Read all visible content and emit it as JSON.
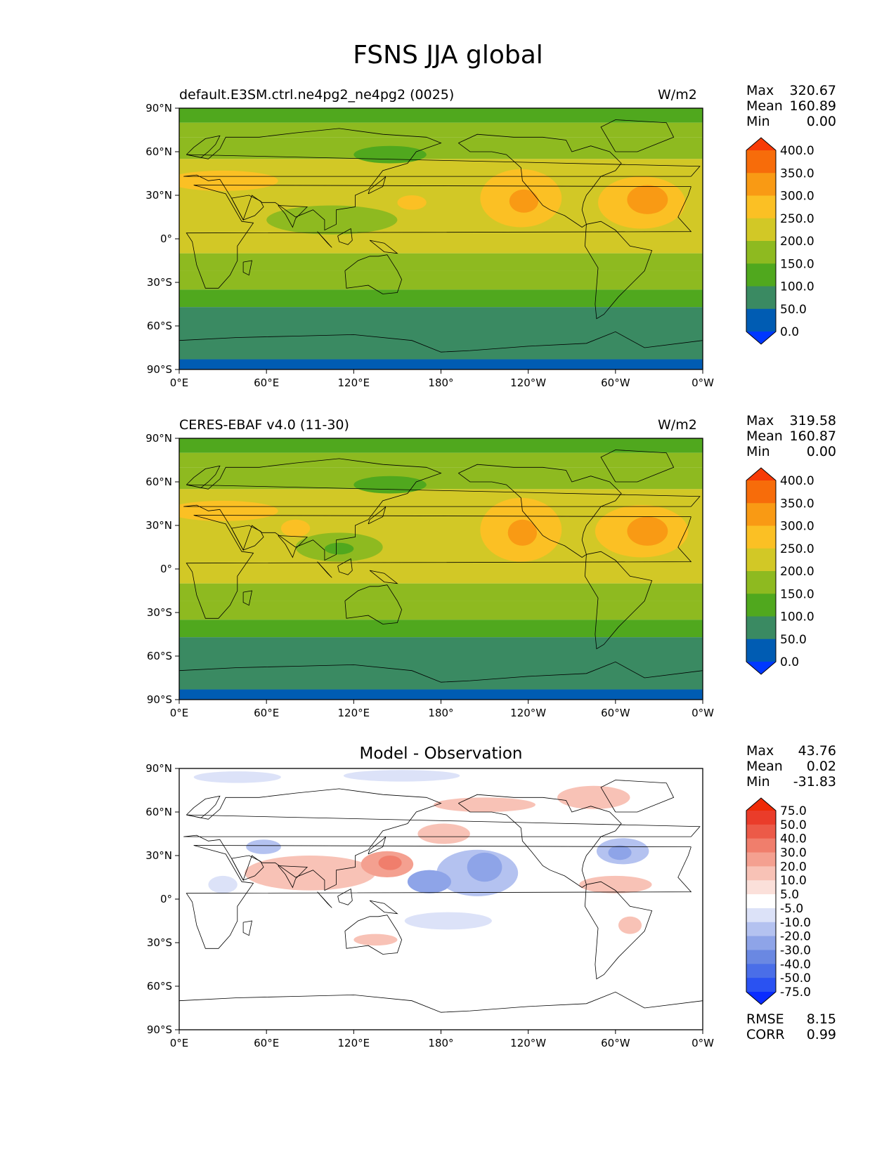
{
  "title": "FSNS JJA global",
  "chart_data": [
    {
      "type": "heatmap",
      "title_left": "default.E3SM.ctrl.ne4pg2_ne4pg2 (0025)",
      "title_right": "W/m2",
      "stats": {
        "max_label": "Max",
        "max": "320.67",
        "mean_label": "Mean",
        "mean": "160.89",
        "min_label": "Min",
        "min": "0.00"
      },
      "colorbar": {
        "levels": [
          "0.0",
          "50.0",
          "100.0",
          "150.0",
          "200.0",
          "250.0",
          "300.0",
          "350.0",
          "400.0"
        ],
        "colors": [
          "#0038ff",
          "#005cb3",
          "#3a8a62",
          "#50a81e",
          "#8eba20",
          "#d2c826",
          "#fbc024",
          "#f99a14",
          "#f76c0a",
          "#f73a06"
        ]
      },
      "x_ticks": [
        "0°E",
        "60°E",
        "120°E",
        "180°",
        "120°W",
        "60°W",
        "0°W"
      ],
      "y_ticks": [
        "90°N",
        "60°N",
        "30°N",
        "0°",
        "30°S",
        "60°S",
        "90°S"
      ],
      "xlim": [
        0,
        360
      ],
      "ylim": [
        -90,
        90
      ],
      "latitude_bands": [
        {
          "lat_from": 90,
          "lat_to": 80,
          "value": 110
        },
        {
          "lat_from": 80,
          "lat_to": 70,
          "value": 160
        },
        {
          "lat_from": 70,
          "lat_to": 55,
          "value": 180
        },
        {
          "lat_from": 55,
          "lat_to": 15,
          "value": 225
        },
        {
          "lat_from": 15,
          "lat_to": -10,
          "value": 215
        },
        {
          "lat_from": -10,
          "lat_to": -22,
          "value": 180
        },
        {
          "lat_from": -22,
          "lat_to": -35,
          "value": 150
        },
        {
          "lat_from": -35,
          "lat_to": -47,
          "value": 110
        },
        {
          "lat_from": -47,
          "lat_to": -83,
          "value": 60
        },
        {
          "lat_from": -83,
          "lat_to": -90,
          "value": 0
        }
      ],
      "anomalies": [
        {
          "lon": 235,
          "lat": 28,
          "rx": 28,
          "ry": 20,
          "value": 270
        },
        {
          "lon": 237,
          "lat": 26,
          "rx": 10,
          "ry": 8,
          "value": 320
        },
        {
          "lon": 318,
          "lat": 25,
          "rx": 30,
          "ry": 18,
          "value": 265
        },
        {
          "lon": 322,
          "lat": 27,
          "rx": 14,
          "ry": 10,
          "value": 310
        },
        {
          "lon": 30,
          "lat": 40,
          "rx": 38,
          "ry": 7,
          "value": 260
        },
        {
          "lon": 105,
          "lat": 13,
          "rx": 45,
          "ry": 10,
          "value": 170
        },
        {
          "lon": 145,
          "lat": 58,
          "rx": 25,
          "ry": 6,
          "value": 120
        },
        {
          "lon": 160,
          "lat": 25,
          "rx": 10,
          "ry": 5,
          "value": 260
        }
      ]
    },
    {
      "type": "heatmap",
      "title_left": "CERES-EBAF v4.0 (11-30)",
      "title_right": "W/m2",
      "stats": {
        "max_label": "Max",
        "max": "319.58",
        "mean_label": "Mean",
        "mean": "160.87",
        "min_label": "Min",
        "min": "0.00"
      },
      "colorbar": {
        "levels": [
          "0.0",
          "50.0",
          "100.0",
          "150.0",
          "200.0",
          "250.0",
          "300.0",
          "350.0",
          "400.0"
        ],
        "colors": [
          "#0038ff",
          "#005cb3",
          "#3a8a62",
          "#50a81e",
          "#8eba20",
          "#d2c826",
          "#fbc024",
          "#f99a14",
          "#f76c0a",
          "#f73a06"
        ]
      },
      "x_ticks": [
        "0°E",
        "60°E",
        "120°E",
        "180°",
        "120°W",
        "60°W",
        "0°W"
      ],
      "y_ticks": [
        "90°N",
        "60°N",
        "30°N",
        "0°",
        "30°S",
        "60°S",
        "90°S"
      ],
      "xlim": [
        0,
        360
      ],
      "ylim": [
        -90,
        90
      ],
      "latitude_bands": [
        {
          "lat_from": 90,
          "lat_to": 80,
          "value": 110
        },
        {
          "lat_from": 80,
          "lat_to": 70,
          "value": 160
        },
        {
          "lat_from": 70,
          "lat_to": 55,
          "value": 180
        },
        {
          "lat_from": 55,
          "lat_to": 15,
          "value": 225
        },
        {
          "lat_from": 15,
          "lat_to": -10,
          "value": 220
        },
        {
          "lat_from": -10,
          "lat_to": -22,
          "value": 180
        },
        {
          "lat_from": -22,
          "lat_to": -35,
          "value": 150
        },
        {
          "lat_from": -35,
          "lat_to": -47,
          "value": 110
        },
        {
          "lat_from": -47,
          "lat_to": -83,
          "value": 60
        },
        {
          "lat_from": -83,
          "lat_to": -90,
          "value": 0
        }
      ],
      "anomalies": [
        {
          "lon": 235,
          "lat": 27,
          "rx": 28,
          "ry": 22,
          "value": 270
        },
        {
          "lon": 236,
          "lat": 25,
          "rx": 10,
          "ry": 9,
          "value": 320
        },
        {
          "lon": 318,
          "lat": 26,
          "rx": 32,
          "ry": 18,
          "value": 265
        },
        {
          "lon": 322,
          "lat": 26,
          "rx": 14,
          "ry": 10,
          "value": 310
        },
        {
          "lon": 30,
          "lat": 40,
          "rx": 38,
          "ry": 7,
          "value": 260
        },
        {
          "lon": 110,
          "lat": 15,
          "rx": 30,
          "ry": 10,
          "value": 170
        },
        {
          "lon": 110,
          "lat": 14,
          "rx": 10,
          "ry": 4,
          "value": 120
        },
        {
          "lon": 145,
          "lat": 58,
          "rx": 25,
          "ry": 6,
          "value": 120
        },
        {
          "lon": 80,
          "lat": 28,
          "rx": 10,
          "ry": 6,
          "value": 265
        }
      ]
    },
    {
      "type": "heatmap",
      "title": "Model - Observation",
      "stats": {
        "max_label": "Max",
        "max": "43.76",
        "mean_label": "Mean",
        "mean": "0.02",
        "min_label": "Min",
        "min": "-31.83"
      },
      "metrics": {
        "rmse_label": "RMSE",
        "rmse": "8.15",
        "corr_label": "CORR",
        "corr": "0.99"
      },
      "colorbar": {
        "levels": [
          "-75.0",
          "-50.0",
          "-40.0",
          "-30.0",
          "-20.0",
          "-10.0",
          "-5.0",
          "5.0",
          "10.0",
          "20.0",
          "30.0",
          "40.0",
          "50.0",
          "75.0"
        ],
        "colors": [
          "#0a2cff",
          "#2a52f2",
          "#4a6ee8",
          "#6a88e2",
          "#8ea4e8",
          "#b4c2f0",
          "#dce2f8",
          "#ffffff",
          "#fbe0da",
          "#f8c2b6",
          "#f4a090",
          "#f07e6c",
          "#ec5a48",
          "#ea3c2a",
          "#ee2a06"
        ]
      },
      "x_ticks": [
        "0°E",
        "60°E",
        "120°E",
        "180°",
        "120°W",
        "60°W",
        "0°W"
      ],
      "y_ticks": [
        "90°N",
        "60°N",
        "30°N",
        "0°",
        "30°S",
        "60°S",
        "90°S"
      ],
      "xlim": [
        0,
        360
      ],
      "ylim": [
        -90,
        90
      ],
      "anomalies": [
        {
          "lon": 90,
          "lat": 18,
          "rx": 45,
          "ry": 12,
          "value": 14
        },
        {
          "lon": 143,
          "lat": 24,
          "rx": 18,
          "ry": 9,
          "value": 22
        },
        {
          "lon": 145,
          "lat": 25,
          "rx": 8,
          "ry": 5,
          "value": 32
        },
        {
          "lon": 205,
          "lat": 18,
          "rx": 28,
          "ry": 16,
          "value": -14
        },
        {
          "lon": 210,
          "lat": 22,
          "rx": 12,
          "ry": 10,
          "value": -24
        },
        {
          "lon": 172,
          "lat": 12,
          "rx": 15,
          "ry": 8,
          "value": -22
        },
        {
          "lon": 182,
          "lat": 45,
          "rx": 18,
          "ry": 7,
          "value": 12
        },
        {
          "lon": 210,
          "lat": 65,
          "rx": 35,
          "ry": 5,
          "value": 12
        },
        {
          "lon": 305,
          "lat": 33,
          "rx": 18,
          "ry": 9,
          "value": -14
        },
        {
          "lon": 303,
          "lat": 32,
          "rx": 8,
          "ry": 5,
          "value": -24
        },
        {
          "lon": 58,
          "lat": 36,
          "rx": 12,
          "ry": 5,
          "value": -12
        },
        {
          "lon": 30,
          "lat": 10,
          "rx": 10,
          "ry": 6,
          "value": -8
        },
        {
          "lon": 135,
          "lat": -28,
          "rx": 15,
          "ry": 4,
          "value": 12
        },
        {
          "lon": 185,
          "lat": -15,
          "rx": 30,
          "ry": 6,
          "value": -8
        },
        {
          "lon": 40,
          "lat": 84,
          "rx": 30,
          "ry": 4,
          "value": -8
        },
        {
          "lon": 153,
          "lat": 85,
          "rx": 40,
          "ry": 4,
          "value": -8
        },
        {
          "lon": 300,
          "lat": 10,
          "rx": 25,
          "ry": 6,
          "value": 10
        },
        {
          "lon": 310,
          "lat": -18,
          "rx": 8,
          "ry": 6,
          "value": 12
        },
        {
          "lon": 285,
          "lat": 70,
          "rx": 25,
          "ry": 8,
          "value": 10
        }
      ]
    }
  ]
}
